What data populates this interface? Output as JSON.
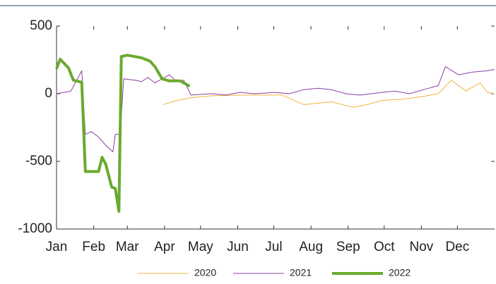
{
  "chart_data": {
    "type": "line",
    "xlim": [
      1,
      366
    ],
    "xticks": [
      {
        "value": 1,
        "label": "Jan"
      },
      {
        "value": 32,
        "label": "Feb"
      },
      {
        "value": 60,
        "label": "Mar"
      },
      {
        "value": 91,
        "label": "Apr"
      },
      {
        "value": 121,
        "label": "May"
      },
      {
        "value": 152,
        "label": "Jun"
      },
      {
        "value": 182,
        "label": "Jul"
      },
      {
        "value": 213,
        "label": "Aug"
      },
      {
        "value": 244,
        "label": "Sep"
      },
      {
        "value": 274,
        "label": "Oct"
      },
      {
        "value": 305,
        "label": "Nov"
      },
      {
        "value": 335,
        "label": "Dec"
      }
    ],
    "ylim": [
      -1000,
      500
    ],
    "yticks": [
      -1000,
      -500,
      0,
      500
    ],
    "legend": "bottom",
    "series": [
      {
        "name": "2020",
        "color": "#f0b43c",
        "width": 1,
        "x": [
          90,
          101,
          113,
          130,
          160,
          189,
          207,
          230,
          248,
          260,
          272,
          289,
          307,
          319,
          330,
          342,
          354,
          360,
          366
        ],
        "values": [
          -80,
          -50,
          -30,
          -15,
          -10,
          -10,
          -80,
          -60,
          -100,
          -80,
          -50,
          -40,
          -20,
          0,
          100,
          20,
          80,
          10,
          0
        ]
      },
      {
        "name": "2021",
        "color": "#8a3fa0",
        "width": 1,
        "x": [
          1,
          13,
          22,
          25,
          30,
          36,
          42,
          48,
          50,
          54,
          57,
          66,
          72,
          77,
          83,
          95,
          101,
          107,
          113,
          130,
          142,
          154,
          166,
          183,
          195,
          207,
          219,
          230,
          242,
          254,
          272,
          283,
          295,
          307,
          319,
          325,
          336,
          348,
          360,
          366
        ],
        "values": [
          0,
          20,
          170,
          -300,
          -280,
          -320,
          -380,
          -430,
          -300,
          -300,
          110,
          100,
          90,
          120,
          80,
          140,
          90,
          100,
          -10,
          0,
          -10,
          10,
          0,
          10,
          0,
          30,
          40,
          30,
          0,
          -10,
          10,
          20,
          0,
          30,
          60,
          200,
          140,
          160,
          170,
          180
        ]
      },
      {
        "name": "2022",
        "color": "#6aaa2e",
        "width": 4,
        "x": [
          1,
          4,
          11,
          15,
          22,
          25,
          36,
          39,
          42,
          47,
          50,
          53,
          55,
          60,
          66,
          72,
          79,
          83,
          89,
          95,
          104,
          112
        ],
        "values": [
          185,
          255,
          190,
          100,
          85,
          -575,
          -575,
          -470,
          -520,
          -690,
          -700,
          -870,
          275,
          285,
          275,
          265,
          240,
          200,
          110,
          95,
          95,
          55
        ]
      }
    ]
  }
}
